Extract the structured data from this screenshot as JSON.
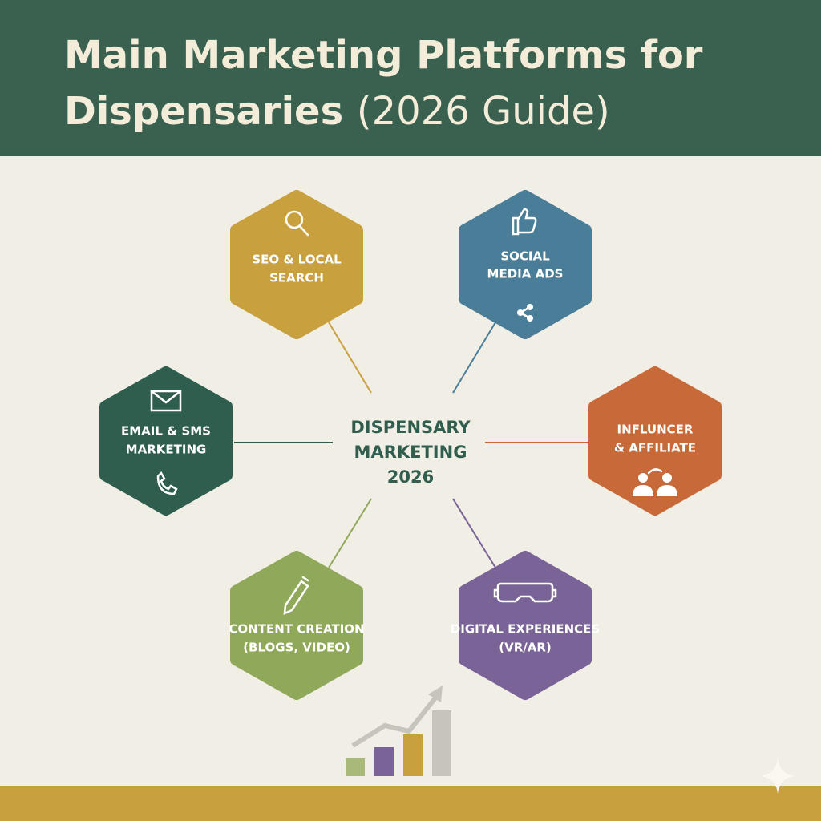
{
  "title": {
    "bold": "Main Marketing Platforms for Dispensaries",
    "light": "(2026 Guide)"
  },
  "center": {
    "lines": [
      "DISPENSARY",
      "MARKETING",
      "2026"
    ]
  },
  "nodes": [
    {
      "lines": [
        "SEO & LOCAL",
        "SEARCH"
      ],
      "color": "#c9a03e"
    },
    {
      "lines": [
        "SOCIAL",
        "MEDIA ADS"
      ],
      "color": "#4a7d98"
    },
    {
      "lines": [
        "EMAIL & SMS",
        "MARKETING"
      ],
      "color": "#2f5e4e"
    },
    {
      "lines": [
        "INFLUNCER",
        "& AFFILIATE"
      ],
      "color": "#c8693a"
    },
    {
      "lines": [
        "CONTENT CREATION",
        "(BLOGS, VIDEO)"
      ],
      "color": "#8fa85a"
    },
    {
      "lines": [
        "DIGITAL EXPERIENCES",
        "(VR/AR)"
      ],
      "color": "#7a6497"
    }
  ]
}
